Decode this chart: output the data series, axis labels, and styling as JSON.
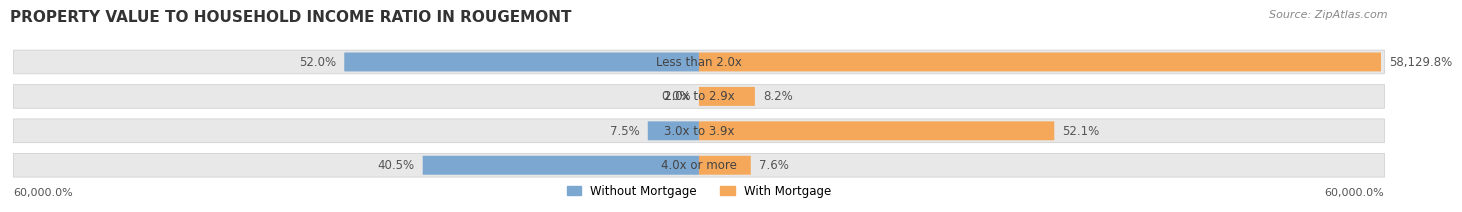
{
  "title": "PROPERTY VALUE TO HOUSEHOLD INCOME RATIO IN ROUGEMONT",
  "source": "Source: ZipAtlas.com",
  "categories": [
    "Less than 2.0x",
    "2.0x to 2.9x",
    "3.0x to 3.9x",
    "4.0x or more"
  ],
  "without_mortgage": [
    52.0,
    0.0,
    7.5,
    40.5
  ],
  "with_mortgage": [
    58129.8,
    8.2,
    52.1,
    7.6
  ],
  "left_label": "60,000.0%",
  "right_label": "60,000.0%",
  "color_blue": "#7ba7d0",
  "color_orange": "#f5a85a",
  "bar_bg": "#e8e8e8",
  "max_val": 60000.0,
  "title_fontsize": 11,
  "source_fontsize": 8,
  "label_fontsize": 8.5,
  "tick_fontsize": 8,
  "legend_fontsize": 8.5
}
